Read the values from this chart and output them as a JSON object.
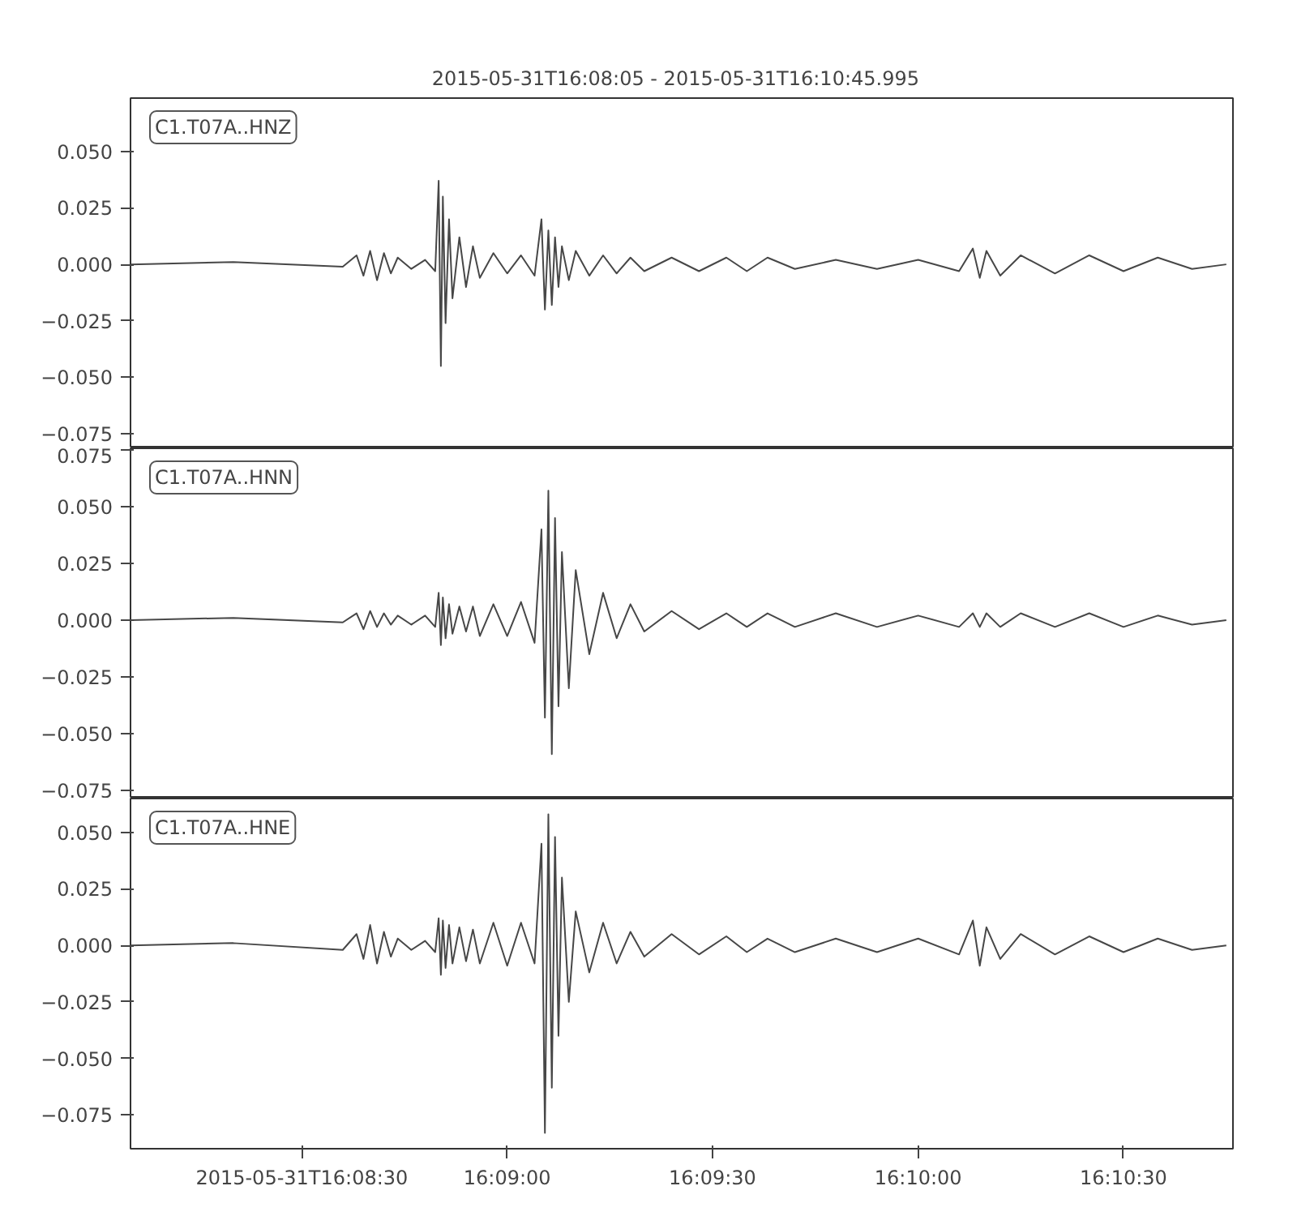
{
  "chart_data": [
    {
      "type": "line",
      "title": "2015-05-31T16:08:05  -  2015-05-31T16:10:45.995",
      "annotations": [
        "C1.T07A..HNZ"
      ],
      "tick_labels": "y",
      "grid": false,
      "x": [
        16.13472,
        16.13889,
        16.14333,
        16.14389,
        16.14417,
        16.14444,
        16.14472,
        16.145,
        16.14528,
        16.14556,
        16.14611,
        16.14667,
        16.14708,
        16.14722,
        16.14731,
        16.14739,
        16.1475,
        16.14764,
        16.14778,
        16.14806,
        16.14833,
        16.14861,
        16.14889,
        16.14944,
        16.15,
        16.15056,
        16.15111,
        16.15139,
        16.15153,
        16.15167,
        16.15181,
        16.15194,
        16.15208,
        16.15222,
        16.1525,
        16.15278,
        16.15333,
        16.15389,
        16.15444,
        16.155,
        16.15556,
        16.15667,
        16.15778,
        16.15889,
        16.15972,
        16.16056,
        16.16167,
        16.16333,
        16.165,
        16.16667,
        16.16833,
        16.16889,
        16.16917,
        16.16944,
        16.17,
        16.17083,
        16.17222,
        16.17361,
        16.175,
        16.17639,
        16.17778,
        16.17917
      ],
      "xlim": [
        16.13472,
        16.17944
      ],
      "ylim": [
        -0.0814,
        0.0736
      ],
      "yticks": [
        {
          "value": -0.075,
          "label": "−0.075"
        },
        {
          "value": -0.05,
          "label": "−0.050"
        },
        {
          "value": -0.025,
          "label": "−0.025"
        },
        {
          "value": 0,
          "label": "0.000"
        },
        {
          "value": 0.025,
          "label": "0.025"
        },
        {
          "value": 0.05,
          "label": "0.050"
        }
      ],
      "series": [
        {
          "color": "#474747",
          "values": [
            0,
            0.001,
            -0.001,
            0.004,
            -0.005,
            0.006,
            -0.007,
            0.005,
            -0.004,
            0.003,
            -0.002,
            0.002,
            -0.003,
            0.037,
            -0.045,
            0.03,
            -0.026,
            0.02,
            -0.015,
            0.012,
            -0.01,
            0.008,
            -0.006,
            0.005,
            -0.004,
            0.004,
            -0.005,
            0.02,
            -0.02,
            0.015,
            -0.018,
            0.012,
            -0.01,
            0.008,
            -0.007,
            0.006,
            -0.005,
            0.004,
            -0.004,
            0.003,
            -0.003,
            0.003,
            -0.003,
            0.003,
            -0.003,
            0.003,
            -0.002,
            0.002,
            -0.002,
            0.002,
            -0.003,
            0.007,
            -0.006,
            0.006,
            -0.005,
            0.004,
            -0.004,
            0.004,
            -0.003,
            0.003,
            -0.002,
            0
          ]
        }
      ]
    },
    {
      "type": "line",
      "annotations": [
        "C1.T07A..HNN"
      ],
      "tick_labels": "y",
      "grid": false,
      "x": [
        16.13472,
        16.13889,
        16.14333,
        16.14389,
        16.14417,
        16.14444,
        16.14472,
        16.145,
        16.14528,
        16.14556,
        16.14611,
        16.14667,
        16.14708,
        16.14722,
        16.14731,
        16.14739,
        16.1475,
        16.14764,
        16.14778,
        16.14806,
        16.14833,
        16.14861,
        16.14889,
        16.14944,
        16.15,
        16.15056,
        16.15111,
        16.15139,
        16.15153,
        16.15167,
        16.15181,
        16.15194,
        16.15208,
        16.15222,
        16.1525,
        16.15278,
        16.15333,
        16.15389,
        16.15444,
        16.155,
        16.15556,
        16.15667,
        16.15778,
        16.15889,
        16.15972,
        16.16056,
        16.16167,
        16.16333,
        16.165,
        16.16667,
        16.16833,
        16.16889,
        16.16917,
        16.16944,
        16.17,
        16.17083,
        16.17222,
        16.17361,
        16.175,
        16.17639,
        16.17778,
        16.17917
      ],
      "xlim": [
        16.13472,
        16.17944
      ],
      "ylim": [
        -0.0786,
        0.0757
      ],
      "yticks": [
        {
          "value": -0.075,
          "label": "−0.075"
        },
        {
          "value": -0.05,
          "label": "−0.050"
        },
        {
          "value": -0.025,
          "label": "−0.025"
        },
        {
          "value": 0,
          "label": "0.000"
        },
        {
          "value": 0.025,
          "label": "0.025"
        },
        {
          "value": 0.05,
          "label": "0.050"
        },
        {
          "value": 0.075,
          "label": "0.075"
        }
      ],
      "series": [
        {
          "color": "#474747",
          "values": [
            0,
            0.001,
            -0.001,
            0.003,
            -0.004,
            0.004,
            -0.003,
            0.003,
            -0.002,
            0.002,
            -0.002,
            0.002,
            -0.003,
            0.012,
            -0.011,
            0.01,
            -0.008,
            0.007,
            -0.006,
            0.006,
            -0.005,
            0.006,
            -0.007,
            0.007,
            -0.007,
            0.008,
            -0.01,
            0.04,
            -0.043,
            0.057,
            -0.059,
            0.045,
            -0.038,
            0.03,
            -0.03,
            0.022,
            -0.015,
            0.012,
            -0.008,
            0.007,
            -0.005,
            0.004,
            -0.004,
            0.003,
            -0.003,
            0.003,
            -0.003,
            0.003,
            -0.003,
            0.002,
            -0.003,
            0.003,
            -0.003,
            0.003,
            -0.003,
            0.003,
            -0.003,
            0.003,
            -0.003,
            0.002,
            -0.002,
            0
          ]
        }
      ]
    },
    {
      "type": "line",
      "annotations": [
        "C1.T07A..HNE"
      ],
      "grid": false,
      "x": [
        16.13472,
        16.13889,
        16.14333,
        16.14389,
        16.14417,
        16.14444,
        16.14472,
        16.145,
        16.14528,
        16.14556,
        16.14611,
        16.14667,
        16.14708,
        16.14722,
        16.14731,
        16.14739,
        16.1475,
        16.14764,
        16.14778,
        16.14806,
        16.14833,
        16.14861,
        16.14889,
        16.14944,
        16.15,
        16.15056,
        16.15111,
        16.15139,
        16.15153,
        16.15167,
        16.15181,
        16.15194,
        16.15208,
        16.15222,
        16.1525,
        16.15278,
        16.15333,
        16.15389,
        16.15444,
        16.155,
        16.15556,
        16.15667,
        16.15778,
        16.15889,
        16.15972,
        16.16056,
        16.16167,
        16.16333,
        16.165,
        16.16667,
        16.16833,
        16.16889,
        16.16917,
        16.16944,
        16.17,
        16.17083,
        16.17222,
        16.17361,
        16.175,
        16.17639,
        16.17778,
        16.17917
      ],
      "xlim": [
        16.13472,
        16.17944
      ],
      "xticks": [
        {
          "value": 16.14167,
          "label": "2015-05-31T16:08:30"
        },
        {
          "value": 16.15,
          "label": "16:09:00"
        },
        {
          "value": 16.15833,
          "label": "16:09:30"
        },
        {
          "value": 16.16667,
          "label": "16:10:00"
        },
        {
          "value": 16.175,
          "label": "16:10:30"
        }
      ],
      "ylim": [
        -0.09,
        0.065
      ],
      "yticks": [
        {
          "value": -0.075,
          "label": "−0.075"
        },
        {
          "value": -0.05,
          "label": "−0.050"
        },
        {
          "value": -0.025,
          "label": "−0.025"
        },
        {
          "value": 0,
          "label": "0.000"
        },
        {
          "value": 0.025,
          "label": "0.025"
        },
        {
          "value": 0.05,
          "label": "0.050"
        }
      ],
      "series": [
        {
          "color": "#474747",
          "values": [
            0,
            0.001,
            -0.002,
            0.005,
            -0.006,
            0.009,
            -0.008,
            0.006,
            -0.005,
            0.003,
            -0.002,
            0.002,
            -0.003,
            0.012,
            -0.013,
            0.011,
            -0.01,
            0.009,
            -0.008,
            0.008,
            -0.007,
            0.007,
            -0.008,
            0.01,
            -0.009,
            0.01,
            -0.008,
            0.045,
            -0.083,
            0.058,
            -0.063,
            0.048,
            -0.04,
            0.03,
            -0.025,
            0.015,
            -0.012,
            0.01,
            -0.008,
            0.006,
            -0.005,
            0.005,
            -0.004,
            0.004,
            -0.003,
            0.003,
            -0.003,
            0.003,
            -0.003,
            0.003,
            -0.004,
            0.011,
            -0.009,
            0.008,
            -0.006,
            0.005,
            -0.004,
            0.004,
            -0.003,
            0.003,
            -0.002,
            0
          ]
        }
      ]
    }
  ]
}
